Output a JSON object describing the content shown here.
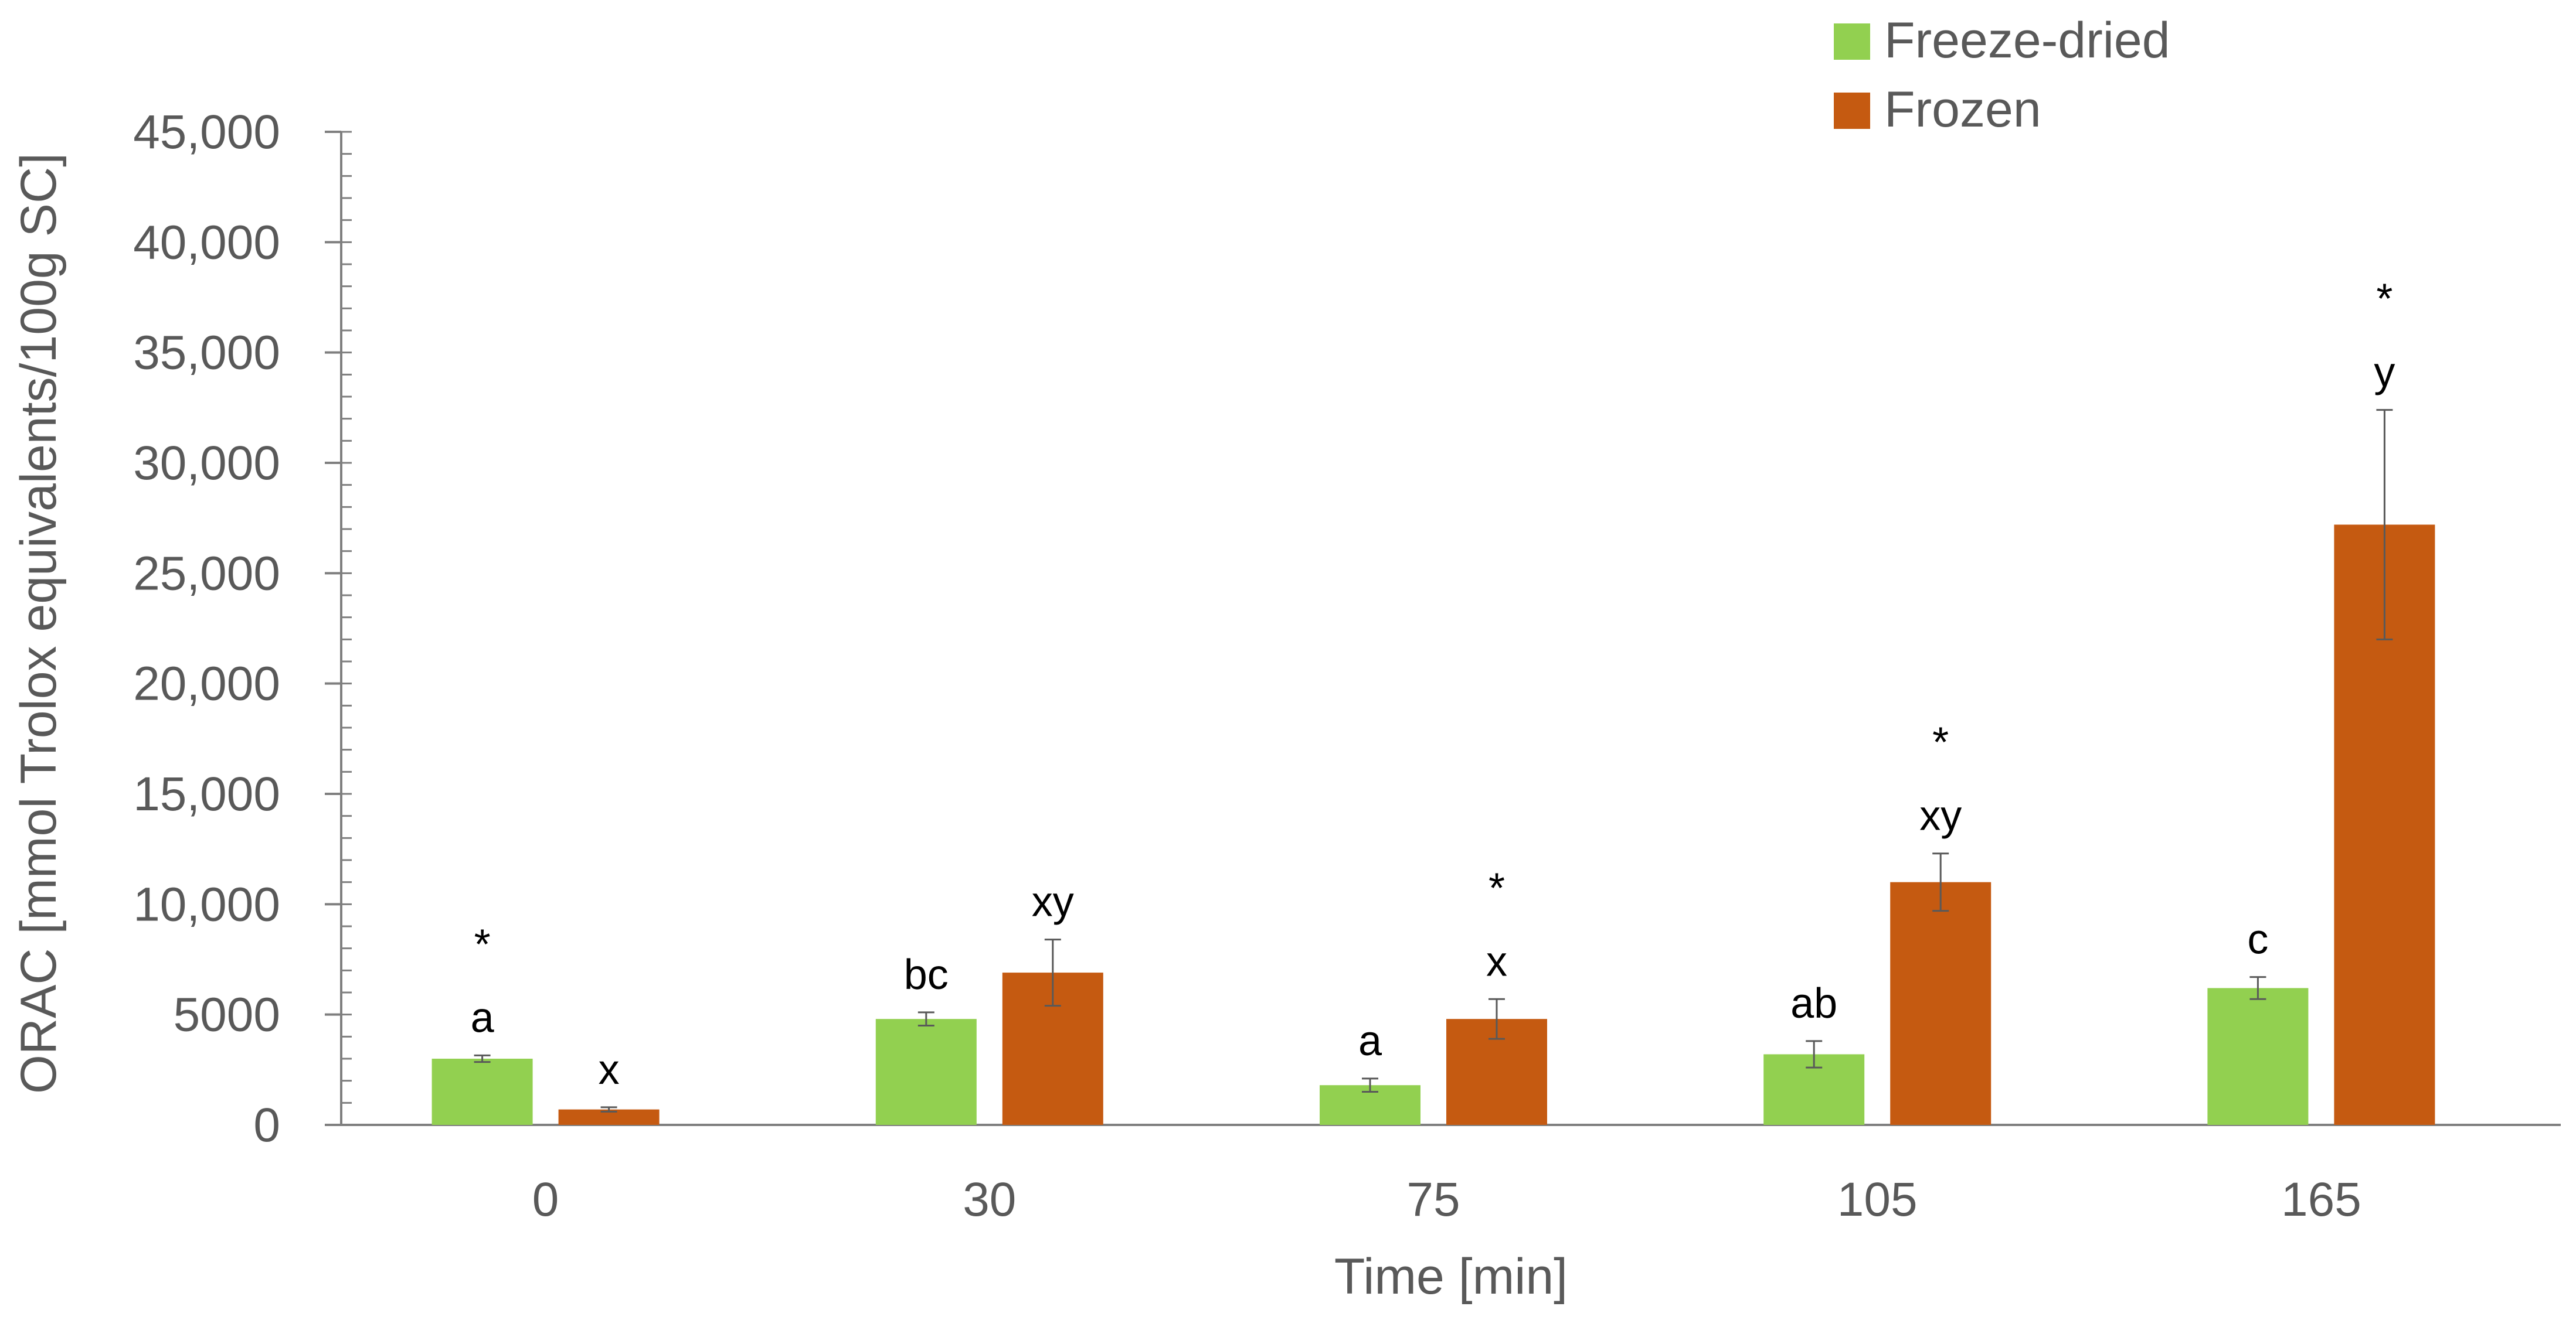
{
  "chart_data": {
    "type": "bar",
    "title": "",
    "xlabel": "Time [min]",
    "ylabel": "ORAC [mmol Trolox equivalents/100g SC]",
    "ylim": [
      0,
      45000
    ],
    "yticks": [
      {
        "value": 0,
        "label": "0"
      },
      {
        "value": 5000,
        "label": "5000"
      },
      {
        "value": 10000,
        "label": "10,000"
      },
      {
        "value": 15000,
        "label": "15,000"
      },
      {
        "value": 20000,
        "label": "20,000"
      },
      {
        "value": 25000,
        "label": "25,000"
      },
      {
        "value": 30000,
        "label": "30,000"
      },
      {
        "value": 35000,
        "label": "35,000"
      },
      {
        "value": 40000,
        "label": "40,000"
      },
      {
        "value": 45000,
        "label": "45,000"
      }
    ],
    "minor_tick_step": 1000,
    "categories": [
      "0",
      "30",
      "75",
      "105",
      "165"
    ],
    "legend_position": "top-right",
    "grid": false,
    "series": [
      {
        "name": "Freeze-dried",
        "color": "#92D050",
        "values": [
          3000,
          4800,
          1800,
          3200,
          6200
        ],
        "errors": [
          150,
          300,
          300,
          600,
          500
        ],
        "letters": [
          "a",
          "bc",
          "a",
          "ab",
          "c"
        ],
        "stars": [
          "*",
          "",
          "",
          "",
          ""
        ]
      },
      {
        "name": "Frozen",
        "color": "#C55A11",
        "values": [
          700,
          6900,
          4800,
          11000,
          27200
        ],
        "errors": [
          100,
          1500,
          900,
          1300,
          5200
        ],
        "letters": [
          "x",
          "xy",
          "x",
          "xy",
          "y"
        ],
        "stars": [
          "",
          "",
          "*",
          "*",
          "*"
        ]
      }
    ]
  }
}
